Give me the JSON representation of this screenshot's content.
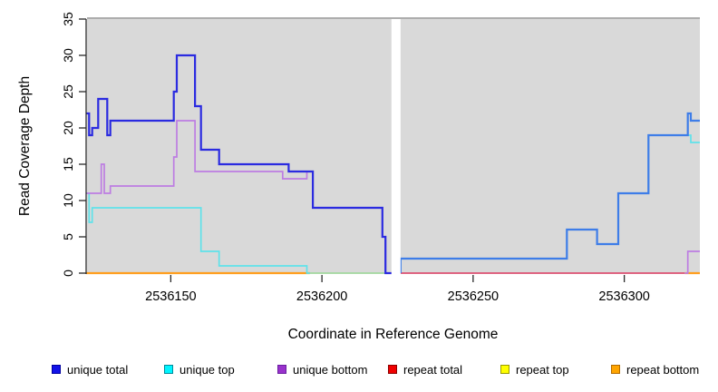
{
  "figure": {
    "kind": "read coverage step plot"
  },
  "axes": {
    "x_title": "Coordinate in Reference Genome",
    "y_title": "Read Coverage Depth",
    "x_ticks": [
      2536150,
      2536200,
      2536250,
      2536300
    ],
    "x_tick_labels": [
      "2536150",
      "2536200",
      "2536250",
      "2536300"
    ],
    "y_ticks": [
      0,
      5,
      10,
      15,
      20,
      25,
      30,
      35
    ],
    "y_tick_labels": [
      "0",
      "5",
      "10",
      "15",
      "20",
      "25",
      "30",
      "35"
    ]
  },
  "chart_data": {
    "type": "line",
    "title": "",
    "xlabel": "Coordinate in Reference Genome",
    "ylabel": "Read Coverage Depth",
    "xlim": [
      2536122,
      2536325
    ],
    "ylim": [
      0,
      35.5
    ],
    "grid": false,
    "plot_bg": "#d9d9d9",
    "top_border_color": "#adadad",
    "gap": {
      "from": 2536223,
      "to": 2536226,
      "color": "#ffffff"
    },
    "series": [
      {
        "name": "repeat top",
        "note": "depth 0 everywhere; visible as pale blend segment mid-plot",
        "segments": [
          {
            "color": "#a2d89e",
            "width": 1.8,
            "points": [
              [
                2536196,
                0
              ],
              [
                2536223,
                0
              ]
            ]
          }
        ]
      },
      {
        "name": "repeat total",
        "note": "depth 0 everywhere; visible right of gap",
        "segments": [
          {
            "color": "#dd5072",
            "width": 1.8,
            "points": [
              [
                2536226,
                0
              ],
              [
                2536320,
                0
              ]
            ]
          }
        ]
      },
      {
        "name": "repeat bottom",
        "note": "depth 0 everywhere; visible left region and far right corner",
        "segments": [
          {
            "color": "#ff9e1e",
            "width": 2.2,
            "points": [
              [
                2536122,
                0
              ],
              [
                2536196,
                0
              ]
            ]
          },
          {
            "color": "#ff9e1e",
            "width": 2.2,
            "points": [
              [
                2536320,
                0
              ],
              [
                2536325,
                0
              ]
            ]
          }
        ]
      },
      {
        "name": "unique top",
        "segments": [
          {
            "color": "#5fe2ea",
            "width": 1.7,
            "points": [
              [
                2536122,
                11
              ],
              [
                2536123,
                7
              ],
              [
                2536124,
                9
              ],
              [
                2536160,
                3
              ],
              [
                2536166,
                1
              ],
              [
                2536195,
                1
              ],
              [
                2536195,
                0
              ],
              [
                2536196,
                0
              ]
            ]
          },
          {
            "color": "#5fe2ea",
            "width": 1.7,
            "points": [
              [
                2536226,
                0
              ],
              [
                2536226,
                2
              ],
              [
                2536281,
                6
              ],
              [
                2536291,
                4
              ],
              [
                2536298,
                11
              ],
              [
                2536308,
                19
              ],
              [
                2536322,
                18
              ],
              [
                2536325,
                18
              ]
            ]
          }
        ]
      },
      {
        "name": "unique bottom",
        "segments": [
          {
            "color": "#bd7de2",
            "width": 1.7,
            "points": [
              [
                2536122,
                11
              ],
              [
                2536127,
                15
              ],
              [
                2536128,
                11
              ],
              [
                2536130,
                12
              ],
              [
                2536151,
                16
              ],
              [
                2536152,
                21
              ],
              [
                2536158,
                14
              ],
              [
                2536187,
                13
              ],
              [
                2536195,
                14
              ],
              [
                2536197,
                9
              ],
              [
                2536220,
                5
              ],
              [
                2536221,
                0
              ],
              [
                2536223,
                0
              ]
            ]
          },
          {
            "color": "#bd7de2",
            "width": 1.7,
            "points": [
              [
                2536320,
                0
              ],
              [
                2536321,
                3
              ],
              [
                2536325,
                3
              ]
            ]
          }
        ]
      },
      {
        "name": "unique total",
        "segments": [
          {
            "color": "#2b2be0",
            "width": 2.2,
            "points": [
              [
                2536122,
                22
              ],
              [
                2536123,
                19
              ],
              [
                2536124,
                20
              ],
              [
                2536126,
                24
              ],
              [
                2536129,
                19
              ],
              [
                2536130,
                21
              ],
              [
                2536151,
                25
              ],
              [
                2536152,
                30
              ],
              [
                2536158,
                23
              ],
              [
                2536160,
                17
              ],
              [
                2536166,
                15
              ],
              [
                2536189,
                14
              ],
              [
                2536197,
                9
              ],
              [
                2536220,
                5
              ],
              [
                2536221,
                0
              ],
              [
                2536223,
                0
              ]
            ]
          },
          {
            "color": "#3e7de8",
            "width": 2.2,
            "points": [
              [
                2536226,
                0
              ],
              [
                2536226,
                2
              ],
              [
                2536281,
                6
              ],
              [
                2536291,
                4
              ],
              [
                2536298,
                11
              ],
              [
                2536308,
                19
              ],
              [
                2536321,
                22
              ],
              [
                2536322,
                21
              ],
              [
                2536325,
                21
              ]
            ]
          }
        ]
      }
    ]
  },
  "legend": {
    "items": [
      {
        "label": "unique total",
        "fill": "#1212e8",
        "border": "#0000a0"
      },
      {
        "label": "unique top",
        "fill": "#00f5ff",
        "border": "#008b9b"
      },
      {
        "label": "unique bottom",
        "fill": "#9932cc",
        "border": "#6a1fa0"
      },
      {
        "label": "repeat total",
        "fill": "#f00000",
        "border": "#8b0000"
      },
      {
        "label": "repeat top",
        "fill": "#ffff00",
        "border": "#9a9a00"
      },
      {
        "label": "repeat bottom",
        "fill": "#ffa500",
        "border": "#b36b00"
      }
    ]
  }
}
